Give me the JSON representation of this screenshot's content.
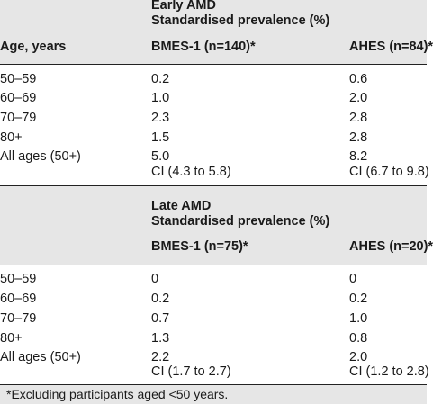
{
  "section_early": {
    "line1": "Early AMD",
    "line2": "Standardised prevalence (%)",
    "row_header": "Age, years",
    "col_bmes": "BMES-1 (n=140)*",
    "col_ahes": "AHES (n=84)*",
    "rows": [
      {
        "age": "50–59",
        "bmes": "0.2",
        "ahes": "0.6"
      },
      {
        "age": "60–69",
        "bmes": "1.0",
        "ahes": "2.0"
      },
      {
        "age": "70–79",
        "bmes": "2.3",
        "ahes": "2.8"
      },
      {
        "age": "80+",
        "bmes": "1.5",
        "ahes": "2.8"
      },
      {
        "age": "All ages (50+)",
        "bmes": "5.0",
        "ahes": "8.2"
      }
    ],
    "ci_bmes": "CI (4.3 to 5.8)",
    "ci_ahes": "CI (6.7 to 9.8)"
  },
  "section_late": {
    "line1": "Late AMD",
    "line2": "Standardised prevalence (%)",
    "col_bmes": "BMES-1 (n=75)*",
    "col_ahes": "AHES (n=20)*",
    "rows": [
      {
        "age": "50–59",
        "bmes": "0",
        "ahes": "0"
      },
      {
        "age": "60–69",
        "bmes": "0.2",
        "ahes": "0.2"
      },
      {
        "age": "70–79",
        "bmes": "0.7",
        "ahes": "1.0"
      },
      {
        "age": "80+",
        "bmes": "1.3",
        "ahes": "0.8"
      },
      {
        "age": "All ages (50+)",
        "bmes": "2.2",
        "ahes": "2.0"
      }
    ],
    "ci_bmes": "CI (1.7 to 2.7)",
    "ci_ahes": "CI (1.2 to 2.8)"
  },
  "footnote": "*Excluding participants aged <50 years.",
  "colors": {
    "band": "#e6e6e6",
    "text": "#1a1a1a",
    "rule": "#222222"
  }
}
